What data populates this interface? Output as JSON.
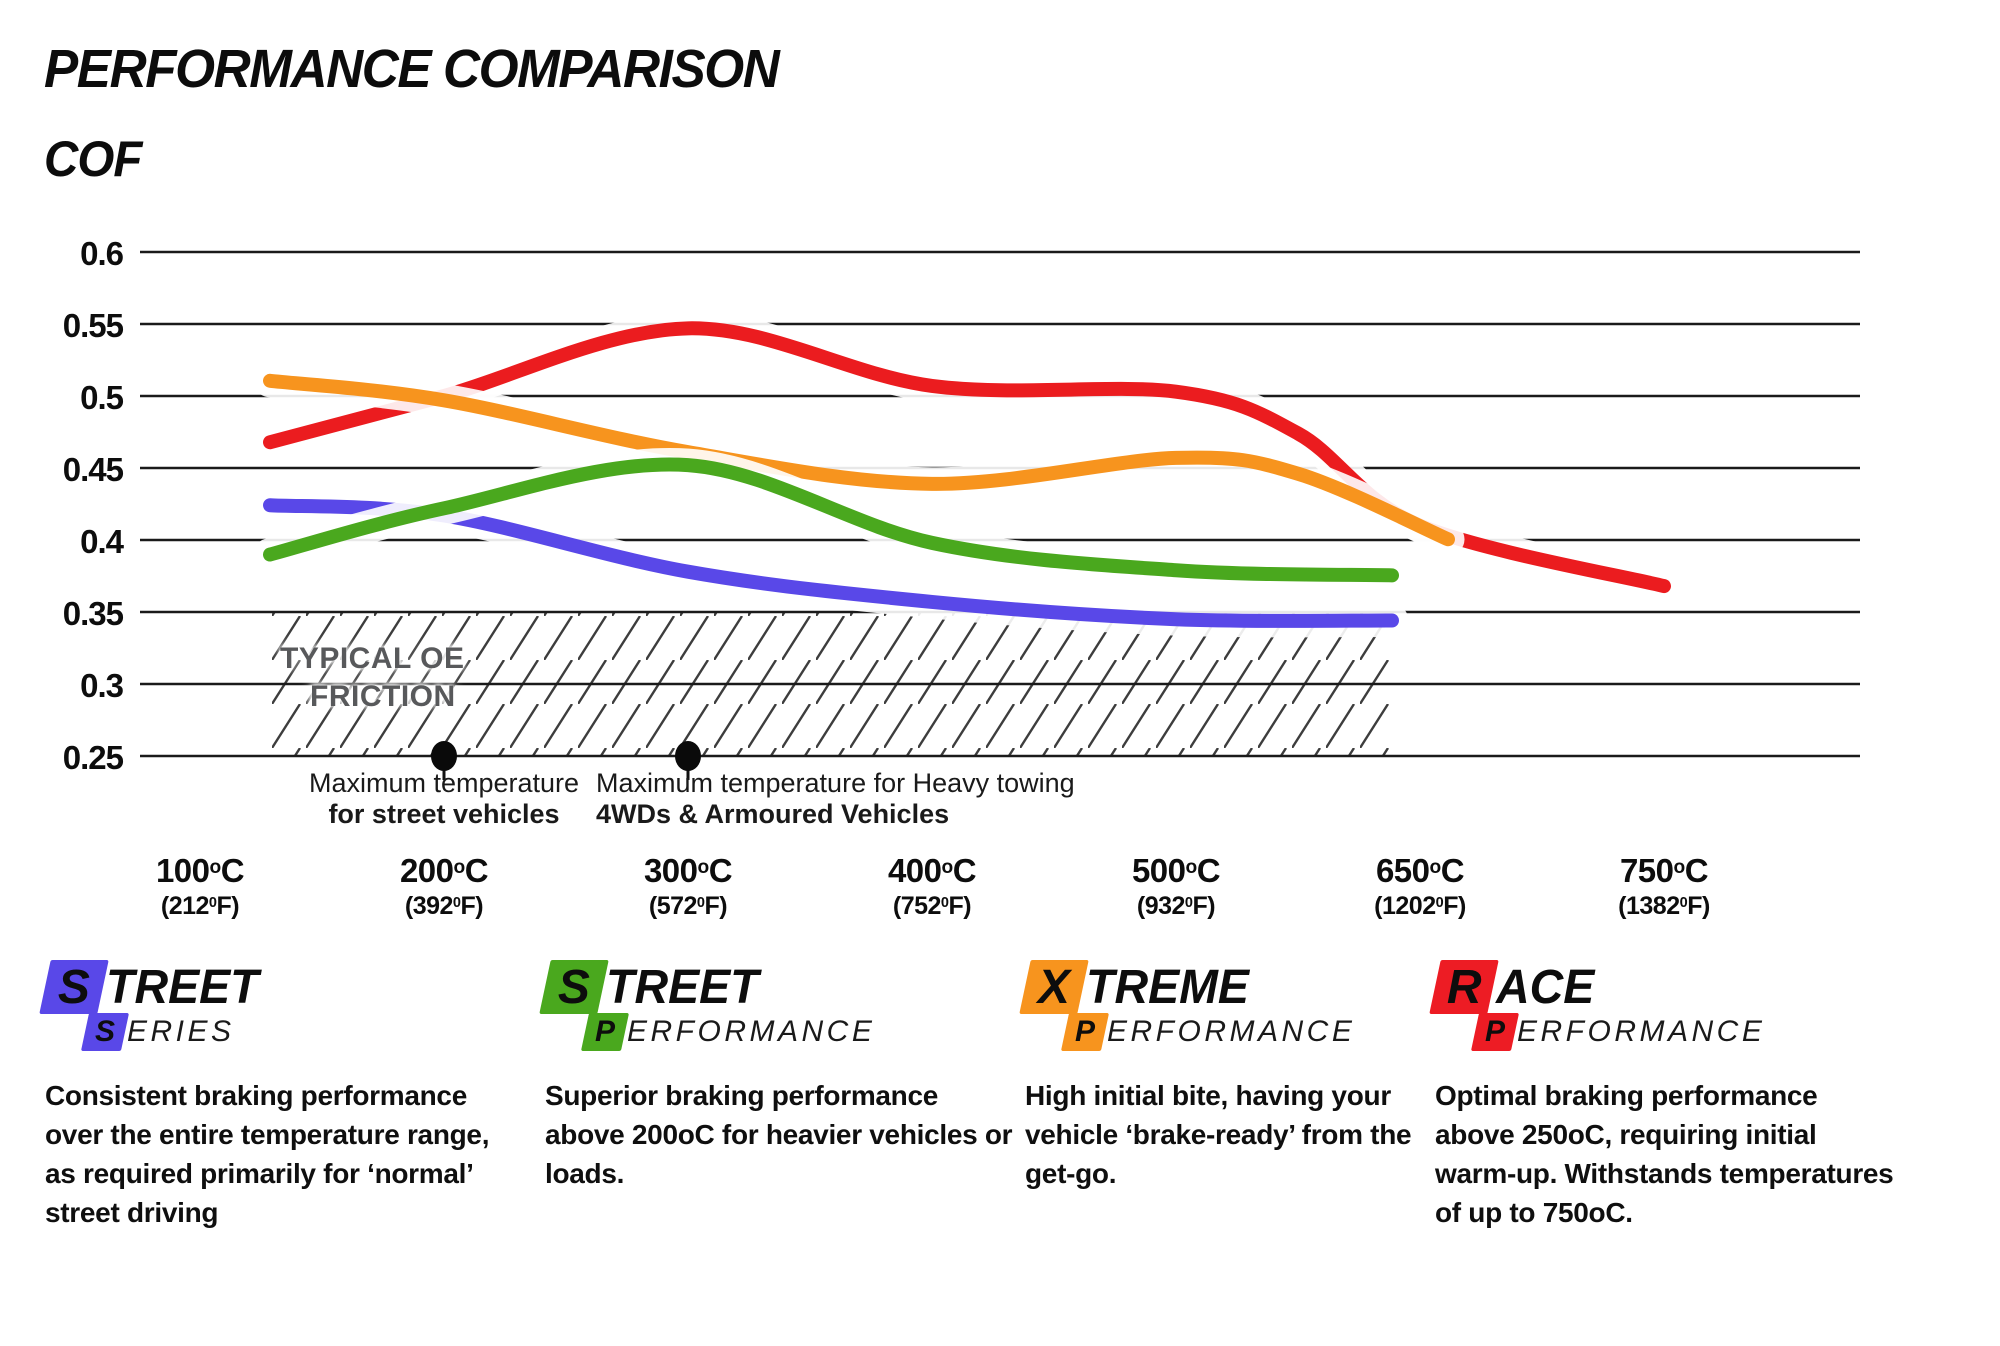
{
  "page": {
    "title": "PERFORMANCE COMPARISON",
    "y_axis_title": "COF"
  },
  "chart_data": {
    "type": "line",
    "title": "PERFORMANCE COMPARISON",
    "ylabel": "COF",
    "grid": true,
    "ylim": [
      0.25,
      0.6
    ],
    "y_ticks": [
      0.6,
      0.55,
      0.5,
      0.45,
      0.4,
      0.35,
      0.3,
      0.25
    ],
    "x_axis": {
      "categories_c": [
        100,
        200,
        300,
        400,
        500,
        650,
        750
      ],
      "categories_f": [
        212,
        392,
        572,
        752,
        932,
        1202,
        1382
      ],
      "unit_c_suffix": "C",
      "unit_f_suffix": "F)",
      "sup_c": "o",
      "sup_f": "0",
      "f_prefix": "("
    },
    "series": [
      {
        "name": "Street Series",
        "color": "#5948E8",
        "points": [
          [
            100,
            0.427
          ],
          [
            200,
            0.417
          ],
          [
            300,
            0.378
          ],
          [
            400,
            0.357
          ],
          [
            500,
            0.345
          ],
          [
            650,
            0.344
          ]
        ]
      },
      {
        "name": "Street Performance",
        "color": "#4AA81E",
        "points": [
          [
            100,
            0.377
          ],
          [
            200,
            0.422
          ],
          [
            300,
            0.452
          ],
          [
            400,
            0.398
          ],
          [
            500,
            0.379
          ],
          [
            650,
            0.375
          ]
        ]
      },
      {
        "name": "Xtreme Performance",
        "color": "#F7941E",
        "points": [
          [
            100,
            0.516
          ],
          [
            200,
            0.497
          ],
          [
            300,
            0.461
          ],
          [
            400,
            0.439
          ],
          [
            500,
            0.457
          ],
          [
            575,
            0.446
          ],
          [
            650,
            0.409
          ]
        ]
      },
      {
        "name": "Race Performance",
        "color": "#EB1C1F",
        "points": [
          [
            100,
            0.455
          ],
          [
            200,
            0.5
          ],
          [
            300,
            0.547
          ],
          [
            400,
            0.507
          ],
          [
            500,
            0.503
          ],
          [
            575,
            0.474
          ],
          [
            650,
            0.41
          ],
          [
            750,
            0.368
          ]
        ]
      }
    ],
    "oe_band": {
      "label_line1": "TYPICAL OE",
      "label_line2": "FRICTION",
      "from": 0.25,
      "to": 0.35
    },
    "annotations": [
      {
        "line1": "Maximum temperature",
        "line2": "for street vehicles",
        "at_c": 200,
        "align": "center"
      },
      {
        "line1": "Maximum temperature for Heavy towing",
        "line2": "4WDs & Armoured Vehicles",
        "at_c": 300,
        "align": "left"
      }
    ]
  },
  "legend": [
    {
      "word1_first": "S",
      "word1_rest": "TREET",
      "word2_first": "S",
      "word2_rest": "ERIES",
      "color": "#5948E8",
      "description": "Consistent braking performance over the entire temperature range, as required primarily for ‘normal’ street driving"
    },
    {
      "word1_first": "S",
      "word1_rest": "TREET",
      "word2_first": "P",
      "word2_rest": "ERFORMANCE",
      "color": "#4AA81E",
      "description": "Superior braking performance above 200oC for heavier vehicles or loads."
    },
    {
      "word1_first": "X",
      "word1_rest": "TREME",
      "word2_first": "P",
      "word2_rest": "ERFORMANCE",
      "color": "#F7941E",
      "description": "High initial bite, having your vehicle ‘brake-ready’ from the get-go."
    },
    {
      "word1_first": "R",
      "word1_rest": "ACE",
      "word2_first": "P",
      "word2_rest": "ERFORMANCE",
      "color": "#ED1C24",
      "description": "Optimal braking performance above 250oC, requiring initial warm-up. Withstands temperatures of up to 750oC."
    }
  ]
}
